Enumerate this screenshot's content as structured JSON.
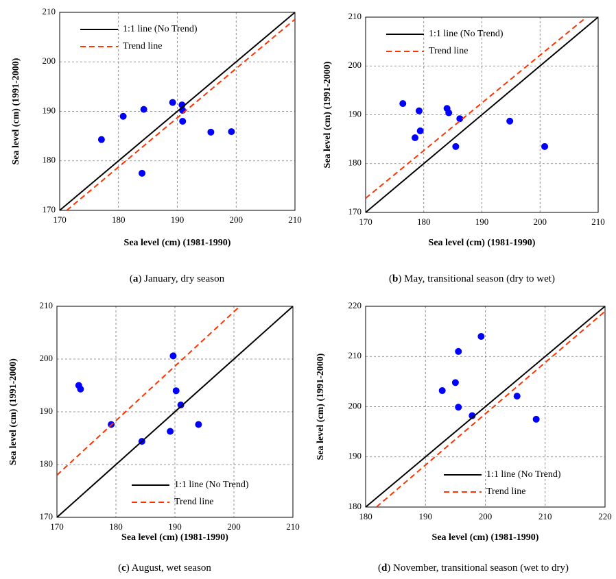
{
  "chart_data": [
    {
      "type": "scatter",
      "caption_label": "a",
      "caption": "January, dry season",
      "xlabel": "Sea level (cm) (1981-1990)",
      "ylabel": "Sea level (cm) (1991-2000)",
      "xlim": [
        170,
        210
      ],
      "ylim": [
        170,
        210
      ],
      "xticks": [
        170,
        180,
        190,
        200,
        210
      ],
      "yticks": [
        170,
        180,
        190,
        200,
        210
      ],
      "grid": true,
      "legend": "upper left",
      "series": [
        {
          "mode": "markers",
          "color": "#0000ff",
          "x": [
            177.1,
            180.8,
            184.3,
            184.0,
            189.2,
            190.8,
            190.9,
            190.9,
            195.7,
            199.2
          ],
          "values": [
            184.3,
            189.0,
            190.4,
            177.5,
            191.8,
            191.3,
            190.2,
            188.0,
            185.8,
            185.9
          ]
        },
        {
          "mode": "line",
          "name": "1:1 line (No Trend)",
          "color": "#000000",
          "dash": false,
          "x": [
            170,
            210
          ],
          "values": [
            170,
            210
          ]
        },
        {
          "mode": "line",
          "name": "Trend line",
          "color": "#ff3300",
          "dash": true,
          "x": [
            171.2,
            210
          ],
          "values": [
            170,
            208.6
          ]
        }
      ]
    },
    {
      "type": "scatter",
      "caption_label": "b",
      "caption": "May, transitional season (dry to wet)",
      "xlabel": "Sea level (cm) (1981-1990)",
      "ylabel": "Sea level (cm) (1991-2000)",
      "xlim": [
        170,
        210
      ],
      "ylim": [
        170,
        210
      ],
      "xticks": [
        170,
        180,
        190,
        200,
        210
      ],
      "yticks": [
        170,
        180,
        190,
        200,
        210
      ],
      "grid": true,
      "legend": "upper left",
      "series": [
        {
          "mode": "markers",
          "color": "#0000ff",
          "x": [
            176.4,
            179.2,
            179.4,
            178.5,
            184.0,
            184.3,
            186.2,
            185.5,
            194.8,
            200.8
          ],
          "values": [
            192.3,
            190.8,
            186.7,
            185.3,
            191.3,
            190.4,
            189.2,
            183.5,
            188.7,
            183.5
          ]
        },
        {
          "mode": "line",
          "name": "1:1 line (No Trend)",
          "color": "#000000",
          "dash": false,
          "x": [
            170,
            210
          ],
          "values": [
            170,
            210
          ]
        },
        {
          "mode": "line",
          "name": "Trend line",
          "color": "#ff3300",
          "dash": true,
          "x": [
            170,
            208
          ],
          "values": [
            172.9,
            210
          ]
        }
      ]
    },
    {
      "type": "scatter",
      "caption_label": "c",
      "caption": "August, wet season",
      "xlabel": "Sea level (cm) (1981-1990)",
      "ylabel": "Sea level (cm) (1991-2000)",
      "xlim": [
        170,
        210
      ],
      "ylim": [
        170,
        210
      ],
      "xticks": [
        170,
        180,
        190,
        200,
        210
      ],
      "yticks": [
        170,
        180,
        190,
        200,
        210
      ],
      "grid": true,
      "legend": "lower right",
      "series": [
        {
          "mode": "markers",
          "color": "#0000ff",
          "x": [
            173.7,
            174.0,
            179.2,
            184.4,
            189.2,
            189.7,
            190.2,
            191.0,
            194.0
          ],
          "values": [
            195.0,
            194.3,
            187.6,
            184.4,
            186.3,
            200.6,
            194.0,
            191.3,
            187.6
          ]
        },
        {
          "mode": "line",
          "name": "1:1 line (No Trend)",
          "color": "#000000",
          "dash": false,
          "x": [
            170,
            210
          ],
          "values": [
            170,
            210
          ]
        },
        {
          "mode": "line",
          "name": "Trend line",
          "color": "#ff3300",
          "dash": true,
          "x": [
            170,
            201
          ],
          "values": [
            178,
            210
          ]
        }
      ]
    },
    {
      "type": "scatter",
      "caption_label": "d",
      "caption": "November, transitional season (wet to dry)",
      "xlabel": "Sea level (cm) (1981-1990)",
      "ylabel": "Sea level (cm) (1991-2000)",
      "xlim": [
        180,
        220
      ],
      "ylim": [
        180,
        220
      ],
      "xticks": [
        180,
        190,
        200,
        210,
        220
      ],
      "yticks": [
        180,
        190,
        200,
        210,
        220
      ],
      "grid": true,
      "legend": "lower right",
      "series": [
        {
          "mode": "markers",
          "color": "#0000ff",
          "x": [
            192.8,
            195.0,
            195.5,
            199.3,
            195.5,
            197.8,
            205.3,
            208.5
          ],
          "values": [
            203.2,
            204.8,
            211.0,
            214.0,
            199.9,
            198.2,
            202.1,
            197.5
          ]
        },
        {
          "mode": "line",
          "name": "1:1 line (No Trend)",
          "color": "#000000",
          "dash": false,
          "x": [
            180,
            220
          ],
          "values": [
            180,
            220
          ]
        },
        {
          "mode": "line",
          "name": "Trend line",
          "color": "#ff3300",
          "dash": true,
          "x": [
            181.8,
            220
          ],
          "values": [
            180,
            219
          ]
        }
      ]
    }
  ]
}
